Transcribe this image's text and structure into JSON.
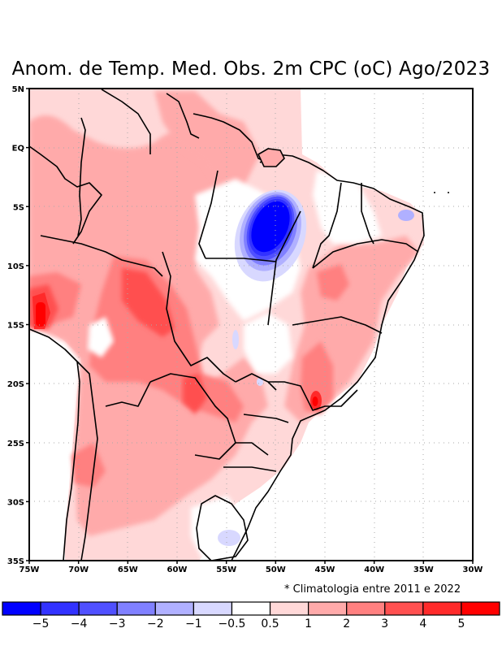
{
  "title": "Anom. de Temp. Med. Obs. 2m CPC (oC) Ago/2023",
  "note": "* Climatologia entre 2011 e 2022",
  "axes": {
    "lat_labels": [
      "5N",
      "EQ",
      "5S",
      "10S",
      "15S",
      "20S",
      "25S",
      "30S",
      "35S"
    ],
    "lat_values": [
      5,
      0,
      -5,
      -10,
      -15,
      -20,
      -25,
      -30,
      -35
    ],
    "lon_labels": [
      "75W",
      "70W",
      "65W",
      "60W",
      "55W",
      "50W",
      "45W",
      "40W",
      "35W",
      "30W"
    ],
    "lon_values": [
      -75,
      -70,
      -65,
      -60,
      -55,
      -50,
      -45,
      -40,
      -35,
      -30
    ]
  },
  "colorbar": {
    "labels": [
      "-5",
      "-4",
      "-3",
      "-2",
      "-1",
      "-0.5",
      "0.5",
      "1",
      "2",
      "3",
      "4",
      "5"
    ],
    "colors": [
      "#0000ff",
      "#3232ff",
      "#5050ff",
      "#8080ff",
      "#b0b0ff",
      "#d8d8ff",
      "#ffffff",
      "#ffd8d8",
      "#ffaaaa",
      "#ff8080",
      "#ff5050",
      "#ff2a2a",
      "#ff0000"
    ]
  },
  "chart_data": {
    "type": "heatmap",
    "title": "Anom. de Temp. Med. Obs. 2m CPC (oC) Ago/2023",
    "variable": "2m mean temperature anomaly (oC)",
    "xlim": [
      -75,
      -30
    ],
    "ylim": [
      -35,
      5
    ],
    "levels": [
      -5,
      -4,
      -3,
      -2,
      -1,
      -0.5,
      0.5,
      1,
      2,
      3,
      4,
      5
    ],
    "grid": true,
    "features": [
      {
        "name": "cold core (east Para / Tocantins)",
        "lon": -51,
        "lat": -7,
        "value": -5
      },
      {
        "name": "Rio Grande do Norte weak cold",
        "lon": -36.5,
        "lat": -6,
        "value": -1
      },
      {
        "name": "south Uruguay / RS weak cold",
        "lon": -54.5,
        "lat": -32.5,
        "value": -1
      },
      {
        "name": "Peru / Bolivia warm core",
        "lon": -74,
        "lat": -14,
        "value": 5
      },
      {
        "name": "Sao Paulo / Minas warm core",
        "lon": -45.5,
        "lat": -21.5,
        "value": 5
      },
      {
        "name": "Bahia west warm",
        "lon": -46,
        "lat": -11.5,
        "value": 3
      },
      {
        "name": "Mato Grosso / Bolivia warm",
        "lon": -63,
        "lat": -12,
        "value": 3
      },
      {
        "name": "Mato Grosso do Sul / Paraguay warm",
        "lon": -56,
        "lat": -22,
        "value": 3
      },
      {
        "name": "Argentina Andes warm",
        "lon": -70,
        "lat": -27,
        "value": 3
      }
    ]
  }
}
